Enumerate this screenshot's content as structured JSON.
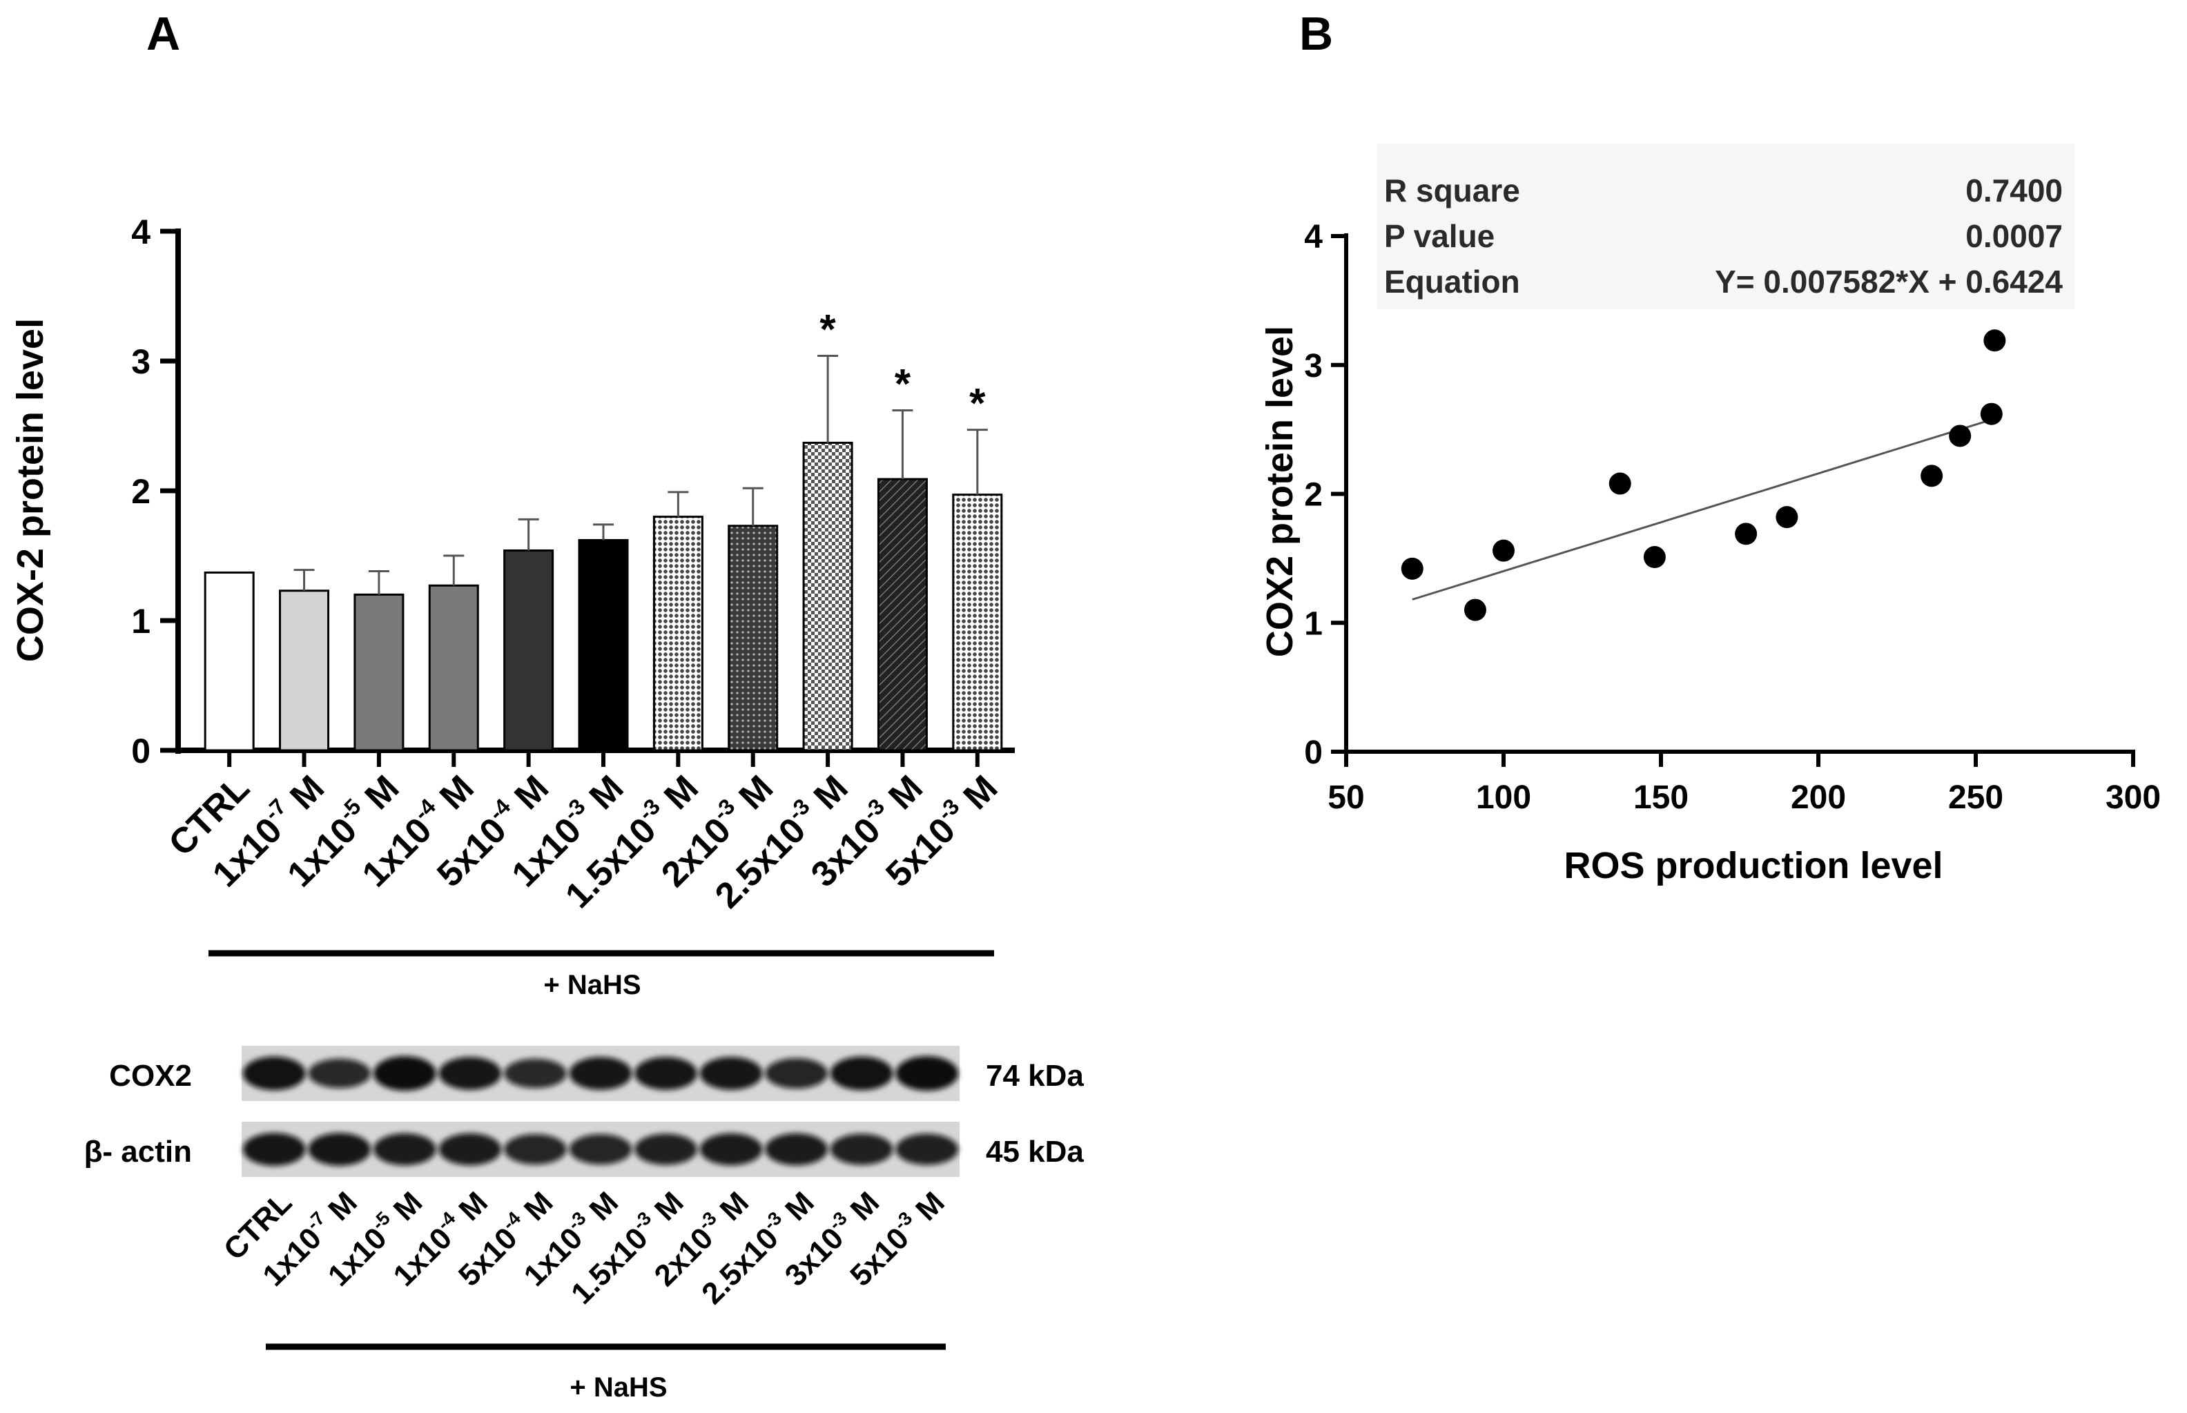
{
  "panel_a": {
    "letter": "A",
    "bracket_label": "+ NaHS",
    "blot": {
      "rows": [
        {
          "name": "COX2",
          "kda": "74 kDa",
          "intensity": [
            0.95,
            0.7,
            1.0,
            0.9,
            0.7,
            0.9,
            0.9,
            0.9,
            0.75,
            0.95,
            1.0
          ]
        },
        {
          "name": "β- actin",
          "kda": "45 kDa",
          "intensity": [
            0.9,
            0.9,
            0.85,
            0.85,
            0.75,
            0.75,
            0.8,
            0.85,
            0.85,
            0.8,
            0.8
          ]
        }
      ],
      "lane_labels": [
        {
          "base": "CTRL",
          "exp": "",
          "unit": ""
        },
        {
          "base": "1x10",
          "exp": "-7",
          "unit": "M"
        },
        {
          "base": "1x10",
          "exp": "-5",
          "unit": "M"
        },
        {
          "base": "1x10",
          "exp": "-4",
          "unit": "M"
        },
        {
          "base": "5x10",
          "exp": "-4",
          "unit": "M"
        },
        {
          "base": "1x10",
          "exp": "-3",
          "unit": "M"
        },
        {
          "base": "1.5x10",
          "exp": "-3",
          "unit": "M"
        },
        {
          "base": "2x10",
          "exp": "-3",
          "unit": "M"
        },
        {
          "base": "2.5x10",
          "exp": "-3",
          "unit": "M"
        },
        {
          "base": "3x10",
          "exp": "-3",
          "unit": "M"
        },
        {
          "base": "5x10",
          "exp": "-3",
          "unit": "M"
        }
      ],
      "bracket_label": "+ NaHS"
    }
  },
  "panel_b": {
    "letter": "B",
    "stats": {
      "rows": [
        {
          "label": "R square",
          "value": "0.7400"
        },
        {
          "label": "P value",
          "value": "0.0007"
        },
        {
          "label": "Equation",
          "value": "Y= 0.007582*X + 0.6424"
        }
      ]
    }
  },
  "chart_data": [
    {
      "type": "bar",
      "title": "",
      "xlabel": "",
      "ylabel": "COX-2 protein level",
      "ylim": [
        0,
        4
      ],
      "yticks": [
        "0",
        "1",
        "2",
        "3",
        "4"
      ],
      "categories": [
        {
          "base": "CTRL",
          "exp": "",
          "unit": ""
        },
        {
          "base": "1x10",
          "exp": "-7",
          "unit": "M"
        },
        {
          "base": "1x10",
          "exp": "-5",
          "unit": "M"
        },
        {
          "base": "1x10",
          "exp": "-4",
          "unit": "M"
        },
        {
          "base": "5x10",
          "exp": "-4",
          "unit": "M"
        },
        {
          "base": "1x10",
          "exp": "-3",
          "unit": "M"
        },
        {
          "base": "1.5x10",
          "exp": "-3",
          "unit": "M"
        },
        {
          "base": "2x10",
          "exp": "-3",
          "unit": "M"
        },
        {
          "base": "2.5x10",
          "exp": "-3",
          "unit": "M"
        },
        {
          "base": "3x10",
          "exp": "-3",
          "unit": "M"
        },
        {
          "base": "5x10",
          "exp": "-3",
          "unit": "M"
        }
      ],
      "values": [
        1.37,
        1.23,
        1.2,
        1.27,
        1.54,
        1.62,
        1.8,
        1.73,
        2.37,
        2.09,
        1.97
      ],
      "errors": [
        0.0,
        0.16,
        0.18,
        0.23,
        0.24,
        0.12,
        0.19,
        0.29,
        0.67,
        0.53,
        0.5
      ],
      "significance": [
        "",
        "",
        "",
        "",
        "",
        "",
        "",
        "",
        "*",
        "*",
        "*"
      ],
      "fills": [
        "white",
        "#d3d3d3",
        "#7a7a7a",
        "#7a7a7a",
        "#333333",
        "#000000",
        "dots",
        "grid",
        "check",
        "diag",
        "dots"
      ]
    },
    {
      "type": "scatter",
      "title": "",
      "xlabel": "ROS production level",
      "ylabel": "COX2 protein level",
      "xlim": [
        50,
        300
      ],
      "ylim": [
        0,
        4
      ],
      "xticks": [
        "50",
        "100",
        "150",
        "200",
        "250",
        "300"
      ],
      "yticks": [
        "0",
        "1",
        "2",
        "3",
        "4"
      ],
      "points": [
        {
          "x": 71,
          "y": 1.42
        },
        {
          "x": 91,
          "y": 1.1
        },
        {
          "x": 100,
          "y": 1.56
        },
        {
          "x": 137,
          "y": 2.08
        },
        {
          "x": 148,
          "y": 1.51
        },
        {
          "x": 177,
          "y": 1.69
        },
        {
          "x": 190,
          "y": 1.82
        },
        {
          "x": 236,
          "y": 2.14
        },
        {
          "x": 245,
          "y": 2.45
        },
        {
          "x": 255,
          "y": 2.62
        },
        {
          "x": 256,
          "y": 3.19
        }
      ],
      "fit": {
        "slope": 0.007582,
        "intercept": 0.6424,
        "x_range": [
          71,
          256
        ]
      }
    }
  ]
}
